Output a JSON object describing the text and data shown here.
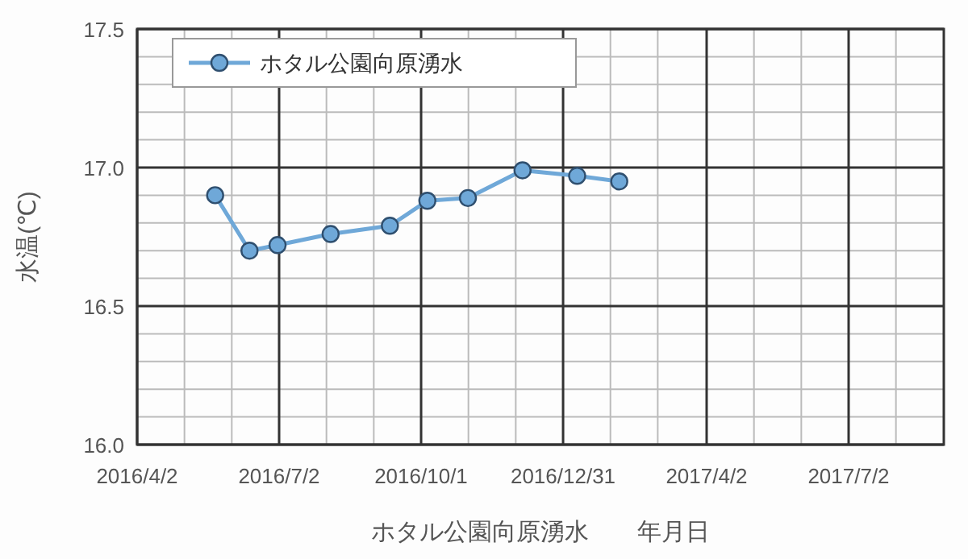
{
  "chart_data": {
    "type": "line",
    "xlabel": "ホタル公園向原湧水　　年月日",
    "ylabel": "水温(℃)",
    "x": [
      "2016-05-22",
      "2016-06-13",
      "2016-07-01",
      "2016-08-04",
      "2016-09-11",
      "2016-10-05",
      "2016-10-31",
      "2016-12-05",
      "2017-01-09",
      "2017-02-05"
    ],
    "series": [
      {
        "name": "ホタル公園向原湧水",
        "color": "#6fa8d8",
        "values": [
          16.9,
          16.7,
          16.72,
          16.76,
          16.79,
          16.88,
          16.89,
          16.99,
          16.97,
          16.95
        ]
      }
    ],
    "xlim": [
      "2016-04-02",
      "2017-09-01"
    ],
    "xticks": [
      {
        "value": "2016-04-02",
        "label": "2016/4/2"
      },
      {
        "value": "2016-07-02",
        "label": "2016/7/2"
      },
      {
        "value": "2016-10-01",
        "label": "2016/10/1"
      },
      {
        "value": "2016-12-31",
        "label": "2016/12/31"
      },
      {
        "value": "2017-04-02",
        "label": "2017/4/2"
      },
      {
        "value": "2017-07-02",
        "label": "2017/7/2"
      }
    ],
    "ylim": [
      16.0,
      17.5
    ],
    "yticks": [
      {
        "value": 16.0,
        "label": "16.0"
      },
      {
        "value": 16.5,
        "label": "16.5"
      },
      {
        "value": 17.0,
        "label": "17.0"
      },
      {
        "value": 17.5,
        "label": "17.5"
      }
    ],
    "grid": true,
    "legend": "top left",
    "marker": "circle",
    "line_style": "solid"
  }
}
